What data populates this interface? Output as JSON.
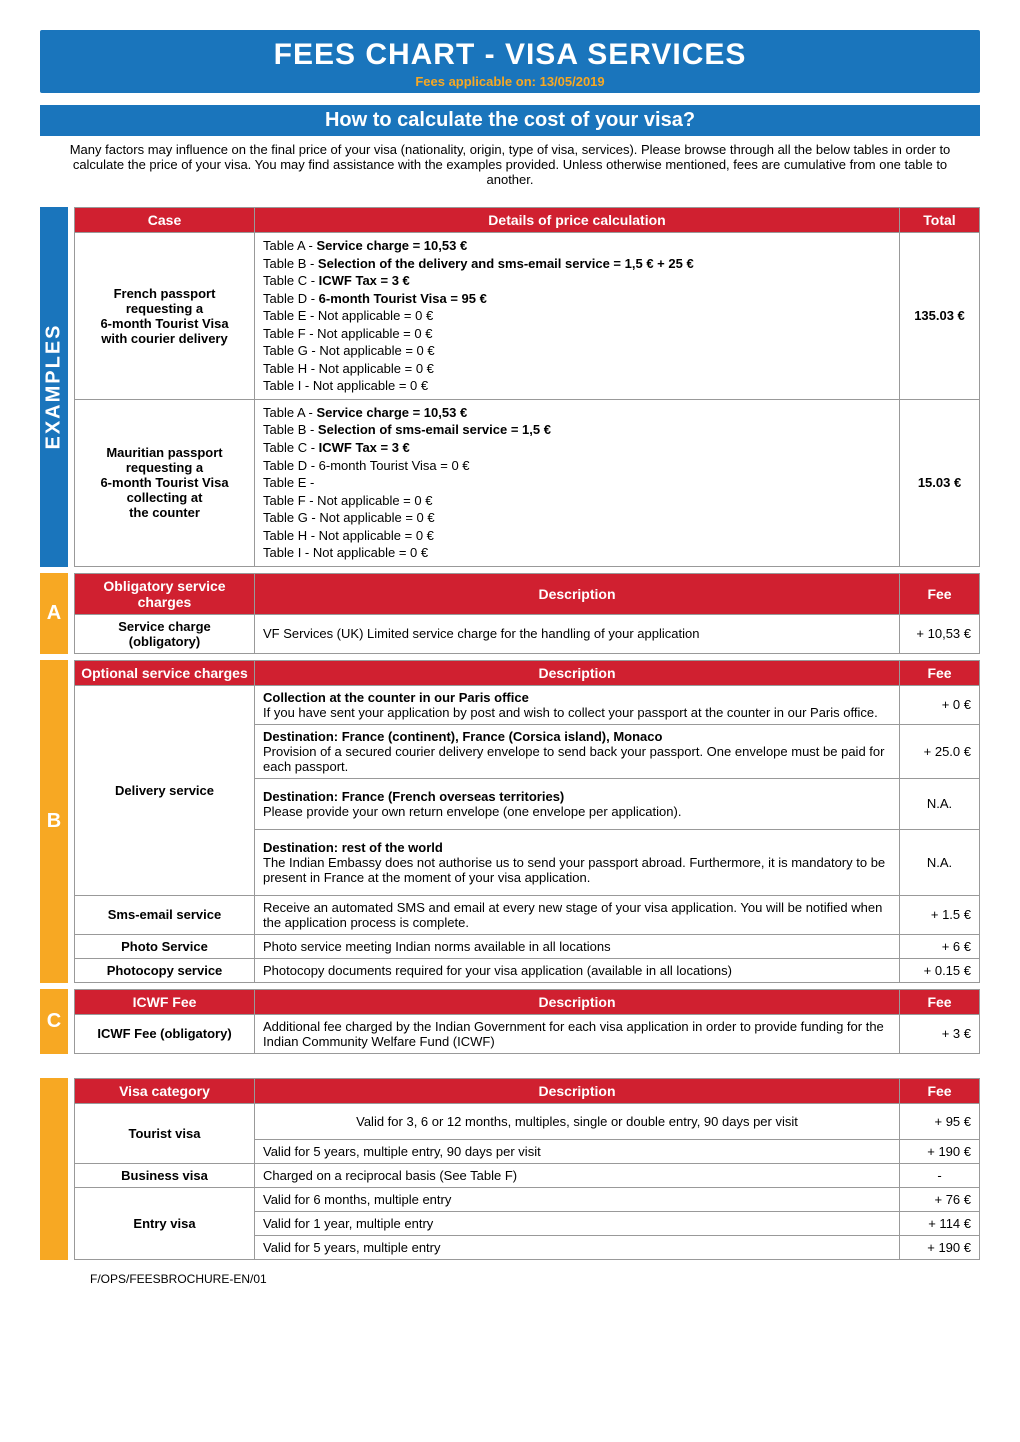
{
  "banner": {
    "title": "FEES CHART - VISA SERVICES",
    "subtitle": "Fees applicable on: 13/05/2019"
  },
  "howto": {
    "heading": "How to calculate the cost of your visa?",
    "intro": "Many factors may influence on the final price of your visa (nationality, origin, type of visa, services). Please browse through all the below tables in order to calculate the price of your visa. You may find assistance with the examples provided. Unless otherwise mentioned, fees are cumulative from one table to another."
  },
  "examples": {
    "side_label": "EXAMPLES",
    "headers": {
      "case": "Case",
      "details": "Details of price calculation",
      "total": "Total"
    },
    "rows": [
      {
        "case_lines": [
          "French passport",
          "requesting a",
          "6-month Tourist Visa",
          "with courier delivery"
        ],
        "details": [
          {
            "k": "Table A - ",
            "v": "Service charge = 10,53 €"
          },
          {
            "k": "Table B - ",
            "v": "Selection of the delivery and sms-email service = 1,5 € + 25 €"
          },
          {
            "k": "Table C - ",
            "v": "ICWF Tax = 3 €"
          },
          {
            "k": "Table D - ",
            "v": "6-month Tourist Visa = 95 €"
          },
          {
            "k": "Table E - Not applicable = 0 €",
            "v": ""
          },
          {
            "k": "Table F - Not applicable = 0 €",
            "v": ""
          },
          {
            "k": "Table G - Not applicable = 0 €",
            "v": ""
          },
          {
            "k": "Table H - Not applicable = 0 €",
            "v": ""
          },
          {
            "k": "Table I - Not applicable = 0 €",
            "v": ""
          }
        ],
        "total": "135.03 €"
      },
      {
        "case_lines": [
          "Mauritian passport",
          "requesting a",
          "6-month Tourist Visa",
          "collecting at",
          "the counter"
        ],
        "details": [
          {
            "k": "Table A - ",
            "v": "Service charge = 10,53 €"
          },
          {
            "k": "Table B - ",
            "v": "Selection of sms-email service = 1,5 €"
          },
          {
            "k": "Table C - ",
            "v": "ICWF Tax = 3 €"
          },
          {
            "k": "Table D - 6-month Tourist Visa = 0 €",
            "v": ""
          },
          {
            "k": "Table E -",
            "v": ""
          },
          {
            "k": "Table F - Not applicable = 0 €",
            "v": ""
          },
          {
            "k": "Table G - Not applicable = 0 €",
            "v": ""
          },
          {
            "k": "Table H - Not applicable = 0 €",
            "v": ""
          },
          {
            "k": "Table I - Not applicable = 0 €",
            "v": ""
          }
        ],
        "total": "15.03 €"
      }
    ]
  },
  "tableA": {
    "tab": "A",
    "headers": {
      "name": "Obligatory service charges",
      "desc": "Description",
      "fee": "Fee"
    },
    "rows": [
      {
        "name": "Service charge (obligatory)",
        "desc": "VF Services (UK) Limited service charge for the handling of your application",
        "fee": "+ 10,53 €"
      }
    ]
  },
  "tableB": {
    "tab": "B",
    "headers": {
      "name": "Optional service charges",
      "desc": "Description",
      "fee": "Fee"
    },
    "rows": [
      {
        "name": "Delivery service",
        "subrows": [
          {
            "desc_title": "Collection at the counter in our Paris office",
            "desc_body": "If you have sent your application by post and wish to collect your passport at the counter in our Paris office.",
            "fee": "+ 0 €"
          },
          {
            "desc_title": "Destination: France (continent), France (Corsica island), Monaco",
            "desc_body": "Provision of a secured courier delivery envelope to send back your passport. One envelope must be paid for each passport.",
            "fee": "+ 25.0 €"
          },
          {
            "desc_title": "Destination: France (French overseas territories)",
            "desc_body": "Please provide your own return envelope (one envelope per application).",
            "fee": "N.A."
          },
          {
            "desc_title": "Destination: rest of the world",
            "desc_body": "The Indian Embassy does not authorise us to send your passport abroad. Furthermore, it is mandatory to be present in France at the moment of your visa application.",
            "fee": "N.A."
          }
        ]
      },
      {
        "name": "Sms-email service",
        "desc": "Receive an automated SMS and email at every new stage of your visa application. You will be notified when the application process is complete.",
        "fee": "+ 1.5 €"
      },
      {
        "name": "Photo Service",
        "desc": "Photo service meeting Indian norms available in all locations",
        "fee": "+ 6 €"
      },
      {
        "name": "Photocopy service",
        "desc": "Photocopy documents required for your visa application (available in all locations)",
        "fee": "+ 0.15 €"
      }
    ]
  },
  "tableC": {
    "tab": "C",
    "headers": {
      "name": "ICWF Fee",
      "desc": "Description",
      "fee": "Fee"
    },
    "rows": [
      {
        "name": "ICWF Fee (obligatory)",
        "desc": "Additional fee charged by the Indian Government for each visa application in order to provide funding for the Indian Community Welfare Fund (ICWF)",
        "fee": "+ 3 €"
      }
    ]
  },
  "tableD": {
    "headers": {
      "name": "Visa category",
      "desc": "Description",
      "fee": "Fee"
    },
    "rows": [
      {
        "name": "Tourist visa",
        "subrows": [
          {
            "desc": "Valid for 3, 6 or 12 months, multiples, single or double entry, 90 days per visit",
            "fee": "+ 95 €"
          },
          {
            "desc": "Valid for 5 years, multiple entry, 90 days per visit",
            "fee": "+ 190 €"
          }
        ]
      },
      {
        "name": "Business visa",
        "subrows": [
          {
            "desc": "Charged on a reciprocal basis (See Table F)",
            "fee": "-"
          }
        ]
      },
      {
        "name": "Entry visa",
        "subrows": [
          {
            "desc": "Valid for 6 months, multiple entry",
            "fee": "+ 76 €"
          },
          {
            "desc": "Valid for 1 year, multiple entry",
            "fee": "+ 114 €"
          },
          {
            "desc": "Valid for 5 years, multiple entry",
            "fee": "+ 190 €"
          }
        ]
      }
    ]
  },
  "footer_ref": "F/OPS/FEESBROCHURE-EN/01"
}
